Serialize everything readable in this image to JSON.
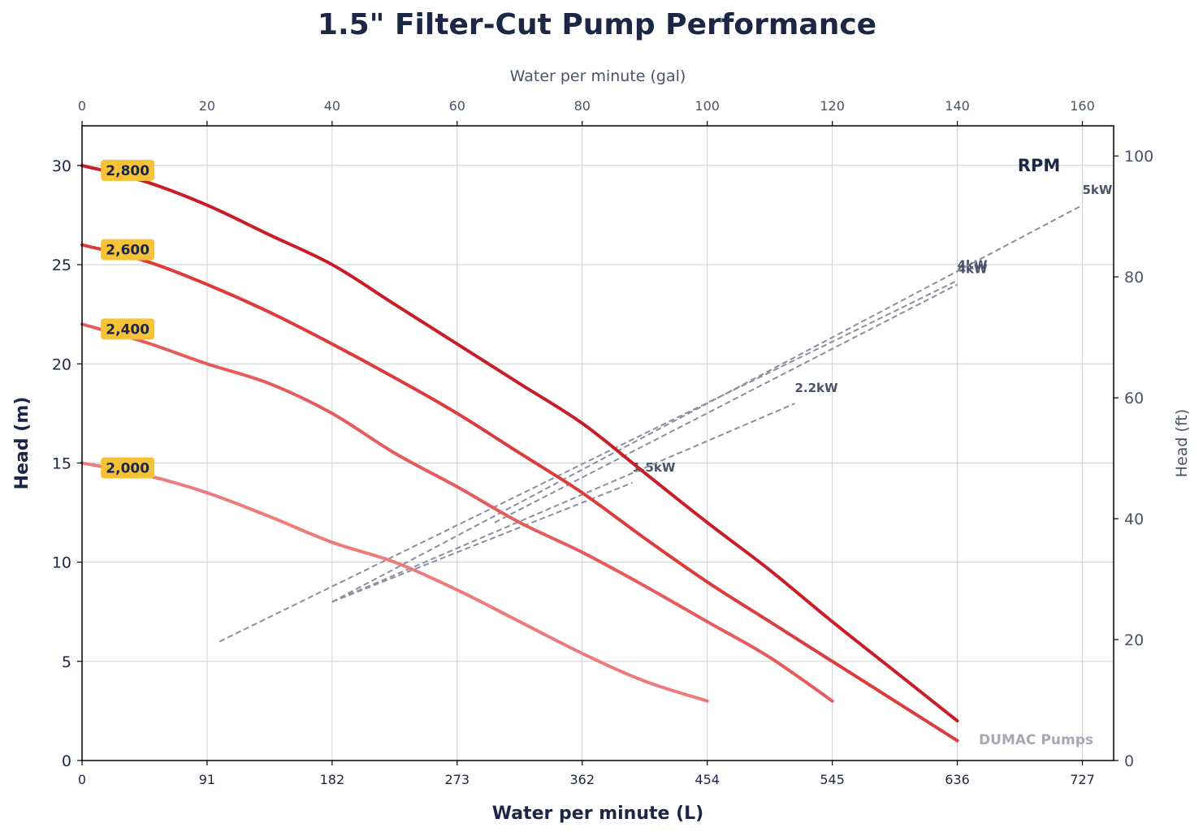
{
  "chart_data": {
    "type": "line",
    "title": "1.5\" Filter-Cut Pump Performance",
    "xlabel": "Water per minute (L)",
    "ylabel": "Head (m)",
    "x2label": "Water per minute (gal)",
    "y2label": "Head (ft)",
    "xlim": [
      0,
      165
    ],
    "ylim": [
      0,
      32
    ],
    "x2lim": [
      0,
      165
    ],
    "y2lim": [
      0,
      104.99
    ],
    "x_ticks": [
      0,
      20,
      40,
      60,
      80,
      100,
      120,
      140,
      160
    ],
    "x_tick_labels": [
      "0",
      "91",
      "182",
      "273",
      "362",
      "454",
      "545",
      "636",
      "727"
    ],
    "x2_tick_labels": [
      "0",
      "20",
      "40",
      "60",
      "80",
      "100",
      "120",
      "140",
      "160"
    ],
    "y_ticks": [
      0,
      5,
      10,
      15,
      20,
      25,
      30
    ],
    "y_tick_labels": [
      "0",
      "5",
      "10",
      "15",
      "20",
      "25",
      "30"
    ],
    "y2_ticks": [
      0,
      20,
      40,
      60,
      80,
      100
    ],
    "y2_tick_labels": [
      "0",
      "20",
      "40",
      "60",
      "80",
      "100"
    ],
    "grid": true,
    "legend_title": "RPM",
    "series": [
      {
        "name": "2,800",
        "color": "#c81e28",
        "width": 4,
        "x": [
          0,
          10,
          20,
          30,
          40,
          50,
          60,
          70,
          80,
          90,
          100,
          110,
          120,
          130,
          140
        ],
        "y": [
          30,
          29.2,
          28,
          26.5,
          25,
          23,
          21,
          19,
          17,
          14.5,
          12,
          9.6,
          7,
          4.5,
          2
        ]
      },
      {
        "name": "2,600",
        "color": "#dc3c3c",
        "width": 4,
        "x": [
          0,
          10,
          20,
          30,
          40,
          50,
          60,
          70,
          80,
          90,
          100,
          110,
          120,
          130,
          140
        ],
        "y": [
          26,
          25.2,
          24,
          22.6,
          21,
          19.3,
          17.5,
          15.5,
          13.5,
          11.2,
          9,
          7,
          5,
          3,
          1
        ]
      },
      {
        "name": "2,400",
        "color": "#e65c5c",
        "width": 4,
        "x": [
          0,
          10,
          20,
          30,
          40,
          50,
          60,
          70,
          80,
          90,
          100,
          110,
          120
        ],
        "y": [
          22,
          21.1,
          20,
          19,
          17.5,
          15.5,
          13.8,
          12,
          10.5,
          8.8,
          7,
          5.2,
          3
        ]
      },
      {
        "name": "2,000",
        "color": "#ec7b7b",
        "width": 4,
        "x": [
          0,
          10,
          20,
          30,
          40,
          50,
          60,
          70,
          80,
          90,
          100
        ],
        "y": [
          15,
          14.4,
          13.5,
          12.3,
          11,
          10,
          8.6,
          7,
          5.4,
          4,
          3
        ]
      }
    ],
    "power_lines": [
      {
        "name": "1.5kW",
        "x": [
          40,
          88
        ],
        "y": [
          8,
          14
        ]
      },
      {
        "name": "2.2kW",
        "x": [
          40,
          114
        ],
        "y": [
          8,
          18
        ]
      },
      {
        "name": "4kW",
        "x": [
          22,
          140
        ],
        "y": [
          6,
          24.2
        ]
      },
      {
        "name": "4kW",
        "x": [
          66,
          140
        ],
        "y": [
          12,
          24
        ]
      },
      {
        "name": "5kW",
        "x": [
          40,
          160
        ],
        "y": [
          8,
          28
        ]
      }
    ],
    "power_line_color": "#8a909e",
    "watermark": "DUMAC Pumps"
  }
}
